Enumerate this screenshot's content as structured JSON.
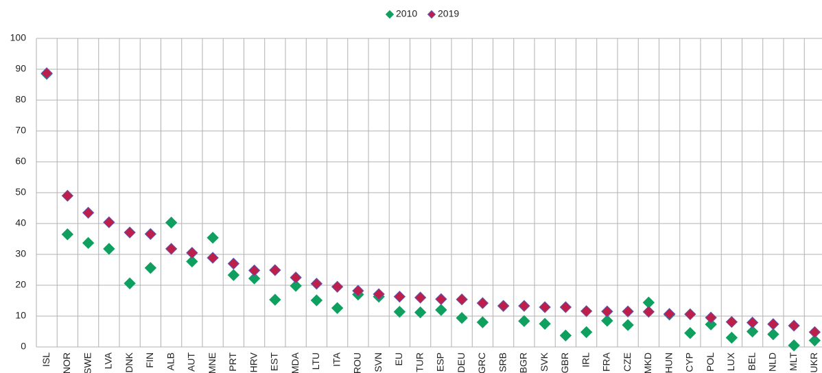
{
  "chart_data": {
    "type": "scatter",
    "categories": [
      "ISL",
      "NOR",
      "SWE",
      "LVA",
      "DNK",
      "FIN",
      "ALB",
      "AUT",
      "MNE",
      "PRT",
      "HRV",
      "EST",
      "MDA",
      "LTU",
      "ITA",
      "ROU",
      "SVN",
      "EU",
      "TUR",
      "ESP",
      "DEU",
      "GRC",
      "SRB",
      "BGR",
      "SVK",
      "GBR",
      "IRL",
      "FRA",
      "CZE",
      "MKD",
      "HUN",
      "CYP",
      "POL",
      "LUX",
      "BEL",
      "NLD",
      "MLT",
      "UKR"
    ],
    "series": [
      {
        "name": "2010",
        "color": "#0fa060",
        "values": [
          88.5,
          36.5,
          33.7,
          31.8,
          20.6,
          25.6,
          40.3,
          27.7,
          35.4,
          23.3,
          22.2,
          15.3,
          19.8,
          15.1,
          12.6,
          17.0,
          16.3,
          11.4,
          11.2,
          12.0,
          9.4,
          8.0,
          13.3,
          8.4,
          7.5,
          3.7,
          4.8,
          8.5,
          7.1,
          14.4,
          10.5,
          4.5,
          7.3,
          3.0,
          5.0,
          4.1,
          0.5,
          2.1
        ]
      },
      {
        "name": "2019",
        "color": "#be1e4a",
        "values": [
          88.7,
          49.0,
          43.5,
          40.4,
          37.1,
          36.6,
          31.8,
          30.5,
          28.9,
          27.0,
          24.8,
          24.9,
          22.5,
          20.5,
          19.5,
          18.2,
          17.1,
          16.3,
          16.0,
          15.5,
          15.4,
          14.2,
          13.3,
          13.3,
          12.9,
          12.9,
          11.6,
          11.5,
          11.5,
          11.4,
          10.7,
          10.6,
          9.5,
          8.1,
          7.9,
          7.4,
          6.9,
          4.8
        ]
      }
    ],
    "ylim": [
      0,
      100
    ],
    "yticks": [
      0,
      10,
      20,
      30,
      40,
      50,
      60,
      70,
      80,
      90,
      100
    ],
    "grid": true,
    "legend": "top"
  }
}
